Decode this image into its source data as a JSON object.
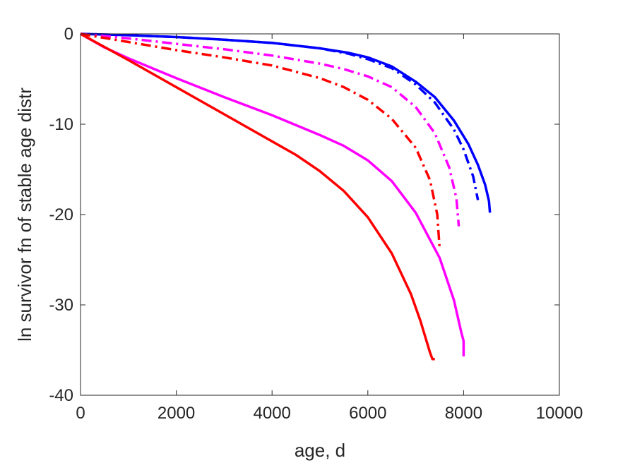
{
  "chart_data": {
    "type": "line",
    "title": "",
    "xlabel": "age, d",
    "ylabel": "ln survivor fn of stable age distr",
    "xlim": [
      0,
      10000
    ],
    "ylim": [
      -40,
      0
    ],
    "xticks": [
      0,
      2000,
      4000,
      6000,
      8000,
      10000
    ],
    "yticks": [
      0,
      -10,
      -20,
      -30,
      -40
    ],
    "xtick_labels": [
      "0",
      "2000",
      "4000",
      "6000",
      "8000",
      "10000"
    ],
    "ytick_labels": [
      "0",
      "-10",
      "-20",
      "-30",
      "-40"
    ],
    "grid": false,
    "legend": "none",
    "series": [
      {
        "color": "#0000ff",
        "dash": "solid",
        "x": [
          0,
          1000,
          2000,
          3000,
          4000,
          5000,
          5600,
          6000,
          6500,
          7000,
          7400,
          7800,
          8100,
          8300,
          8450,
          8530,
          8550
        ],
        "y": [
          0,
          -0.15,
          -0.35,
          -0.65,
          -1.0,
          -1.6,
          -2.1,
          -2.6,
          -3.6,
          -5.3,
          -7.0,
          -9.6,
          -12.2,
          -14.5,
          -16.7,
          -18.5,
          -19.8
        ]
      },
      {
        "color": "#0000ff",
        "dash": "dashdot",
        "x": [
          0,
          1000,
          2000,
          3000,
          4000,
          5000,
          5600,
          6000,
          6500,
          7000,
          7400,
          7800,
          8000,
          8200,
          8300
        ],
        "y": [
          0,
          -0.15,
          -0.35,
          -0.65,
          -1.0,
          -1.6,
          -2.2,
          -2.8,
          -3.8,
          -5.6,
          -7.6,
          -10.6,
          -12.8,
          -15.8,
          -18.4
        ]
      },
      {
        "color": "#ff00ff",
        "dash": "solid",
        "x": [
          0,
          500,
          1000,
          2000,
          3000,
          4000,
          5000,
          5500,
          6000,
          6500,
          7000,
          7500,
          7800,
          7950,
          8000,
          8000
        ],
        "y": [
          0,
          -1.5,
          -2.7,
          -4.9,
          -7.0,
          -9.0,
          -11.2,
          -12.4,
          -14.0,
          -16.3,
          -19.8,
          -24.8,
          -29.5,
          -33.0,
          -34.0,
          -35.7
        ]
      },
      {
        "color": "#ff00ff",
        "dash": "dashdot",
        "x": [
          0,
          1000,
          2000,
          3000,
          4000,
          5000,
          5500,
          6000,
          6500,
          7000,
          7400,
          7700,
          7850,
          7900
        ],
        "y": [
          0,
          -0.5,
          -1.1,
          -1.7,
          -2.4,
          -3.3,
          -3.9,
          -4.7,
          -5.9,
          -8.1,
          -11.0,
          -14.8,
          -18.2,
          -21.3
        ]
      },
      {
        "color": "#ff0000",
        "dash": "solid",
        "x": [
          0,
          1000,
          2000,
          3000,
          4000,
          4500,
          5000,
          5500,
          6000,
          6500,
          6900,
          7100,
          7300,
          7350,
          7400
        ],
        "y": [
          0,
          -2.9,
          -5.9,
          -8.9,
          -11.9,
          -13.4,
          -15.2,
          -17.4,
          -20.3,
          -24.3,
          -28.8,
          -31.8,
          -35.3,
          -36.0,
          -36.0
        ]
      },
      {
        "color": "#ff0000",
        "dash": "dashdot",
        "x": [
          0,
          1000,
          2000,
          3000,
          4000,
          5000,
          5500,
          6000,
          6500,
          7000,
          7300,
          7450,
          7500
        ],
        "y": [
          0,
          -0.9,
          -1.8,
          -2.6,
          -3.5,
          -4.9,
          -5.9,
          -7.3,
          -9.4,
          -12.6,
          -16.2,
          -20.0,
          -23.8
        ]
      }
    ]
  }
}
